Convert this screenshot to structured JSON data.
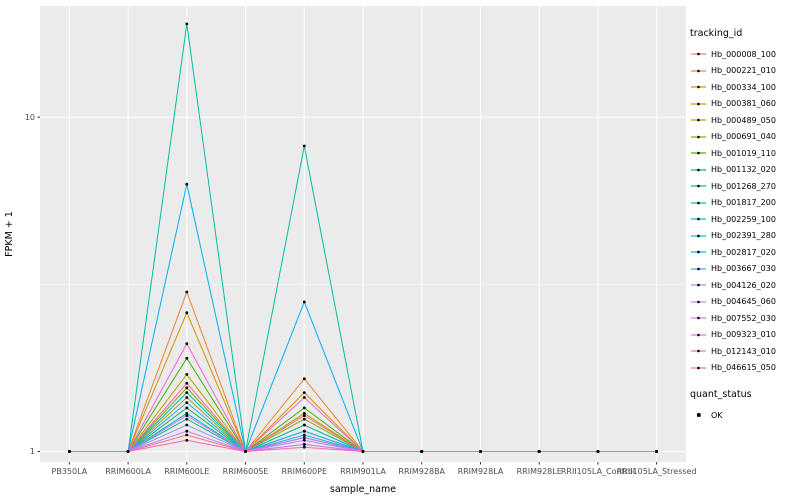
{
  "chart_data": {
    "type": "line",
    "title": "",
    "xlabel": "sample_name",
    "ylabel": "FPKM + 1",
    "y_scale": "log10",
    "yticks": [
      "1",
      "10"
    ],
    "ytick_values": [
      1,
      10
    ],
    "ylim": [
      0.93,
      21.5
    ],
    "grid": true,
    "legend_position": "right",
    "legend_title": "tracking_id",
    "legend2_title": "quant_status",
    "legend2_items": [
      {
        "label": "OK",
        "shape": "black-point"
      }
    ],
    "panel_bg": "#EBEBEB",
    "grid_color": "#FFFFFF",
    "tick_text_color": "#4D4D4D",
    "point_color": "#000000",
    "categories": [
      "PB350LA",
      "RRIM600LA",
      "RRIM600LE",
      "RRIM600SE",
      "RRIM600PE",
      "RRIM901LA",
      "RRIM928BA",
      "RRIM928LA",
      "RRIM928LE",
      "RRII105LA_Control",
      "RRII105LA_Stressed"
    ],
    "series": [
      {
        "name": "Hb_000008_100",
        "color": "#F8766D",
        "values": [
          1,
          1,
          1.12,
          1,
          1.05,
          1,
          1,
          1,
          1,
          1,
          1
        ]
      },
      {
        "name": "Hb_000221_010",
        "color": "#EA8331",
        "values": [
          1,
          1,
          3.0,
          1,
          1.65,
          1,
          1,
          1,
          1,
          1,
          1
        ]
      },
      {
        "name": "Hb_000334_100",
        "color": "#D89000",
        "values": [
          1,
          1,
          2.6,
          1,
          1.5,
          1,
          1,
          1,
          1,
          1,
          1
        ]
      },
      {
        "name": "Hb_000381_060",
        "color": "#C09B00",
        "values": [
          1,
          1,
          1.7,
          1,
          1.3,
          1,
          1,
          1,
          1,
          1,
          1
        ]
      },
      {
        "name": "Hb_000489_050",
        "color": "#A3A500",
        "values": [
          1,
          1,
          1.45,
          1,
          1.2,
          1,
          1,
          1,
          1,
          1,
          1
        ]
      },
      {
        "name": "Hb_000691_040",
        "color": "#7CAE00",
        "values": [
          1,
          1,
          1.55,
          1,
          1.25,
          1,
          1,
          1,
          1,
          1,
          1
        ]
      },
      {
        "name": "Hb_001019_110",
        "color": "#39B600",
        "values": [
          1,
          1,
          1.9,
          1,
          1.35,
          1,
          1,
          1,
          1,
          1,
          1
        ]
      },
      {
        "name": "Hb_001132_020",
        "color": "#00BB4E",
        "values": [
          1,
          1,
          1.35,
          1,
          1.15,
          1,
          1,
          1,
          1,
          1,
          1
        ]
      },
      {
        "name": "Hb_001268_270",
        "color": "#00BF7D",
        "values": [
          1,
          1,
          1.25,
          1,
          1.1,
          1,
          1,
          1,
          1,
          1,
          1
        ]
      },
      {
        "name": "Hb_001817_200",
        "color": "#00C1A3",
        "values": [
          1,
          1,
          19,
          1,
          8.2,
          1,
          1,
          1,
          1,
          1,
          1
        ]
      },
      {
        "name": "Hb_002259_100",
        "color": "#00BFC4",
        "values": [
          1,
          1,
          1.5,
          1,
          1.2,
          1,
          1,
          1,
          1,
          1,
          1
        ]
      },
      {
        "name": "Hb_002391_280",
        "color": "#00BAE0",
        "values": [
          1,
          1,
          1.3,
          1,
          1.12,
          1,
          1,
          1,
          1,
          1,
          1
        ]
      },
      {
        "name": "Hb_002817_020",
        "color": "#00B0F6",
        "values": [
          1,
          1,
          6.3,
          1,
          2.8,
          1,
          1,
          1,
          1,
          1,
          1
        ]
      },
      {
        "name": "Hb_003667_030",
        "color": "#35A2FF",
        "values": [
          1,
          1,
          1.4,
          1,
          1.15,
          1,
          1,
          1,
          1,
          1,
          1
        ]
      },
      {
        "name": "Hb_004126_020",
        "color": "#9590FF",
        "values": [
          1,
          1,
          1.2,
          1,
          1.08,
          1,
          1,
          1,
          1,
          1,
          1
        ]
      },
      {
        "name": "Hb_004645_060",
        "color": "#C77CFF",
        "values": [
          1,
          1,
          1.15,
          1,
          1.05,
          1,
          1,
          1,
          1,
          1,
          1
        ]
      },
      {
        "name": "Hb_007552_030",
        "color": "#E76BF3",
        "values": [
          1,
          1,
          1.28,
          1,
          1.1,
          1,
          1,
          1,
          1,
          1,
          1
        ]
      },
      {
        "name": "Hb_009323_010",
        "color": "#FA62DB",
        "values": [
          1,
          1,
          2.1,
          1,
          1.45,
          1,
          1,
          1,
          1,
          1,
          1
        ]
      },
      {
        "name": "Hb_012143_010",
        "color": "#FF62BC",
        "values": [
          1,
          1,
          1.08,
          1,
          1.03,
          1,
          1,
          1,
          1,
          1,
          1
        ]
      },
      {
        "name": "Hb_046615_050",
        "color": "#FF6A98",
        "values": [
          1,
          1,
          1.6,
          1,
          1.28,
          1,
          1,
          1,
          1,
          1,
          1
        ]
      }
    ]
  }
}
